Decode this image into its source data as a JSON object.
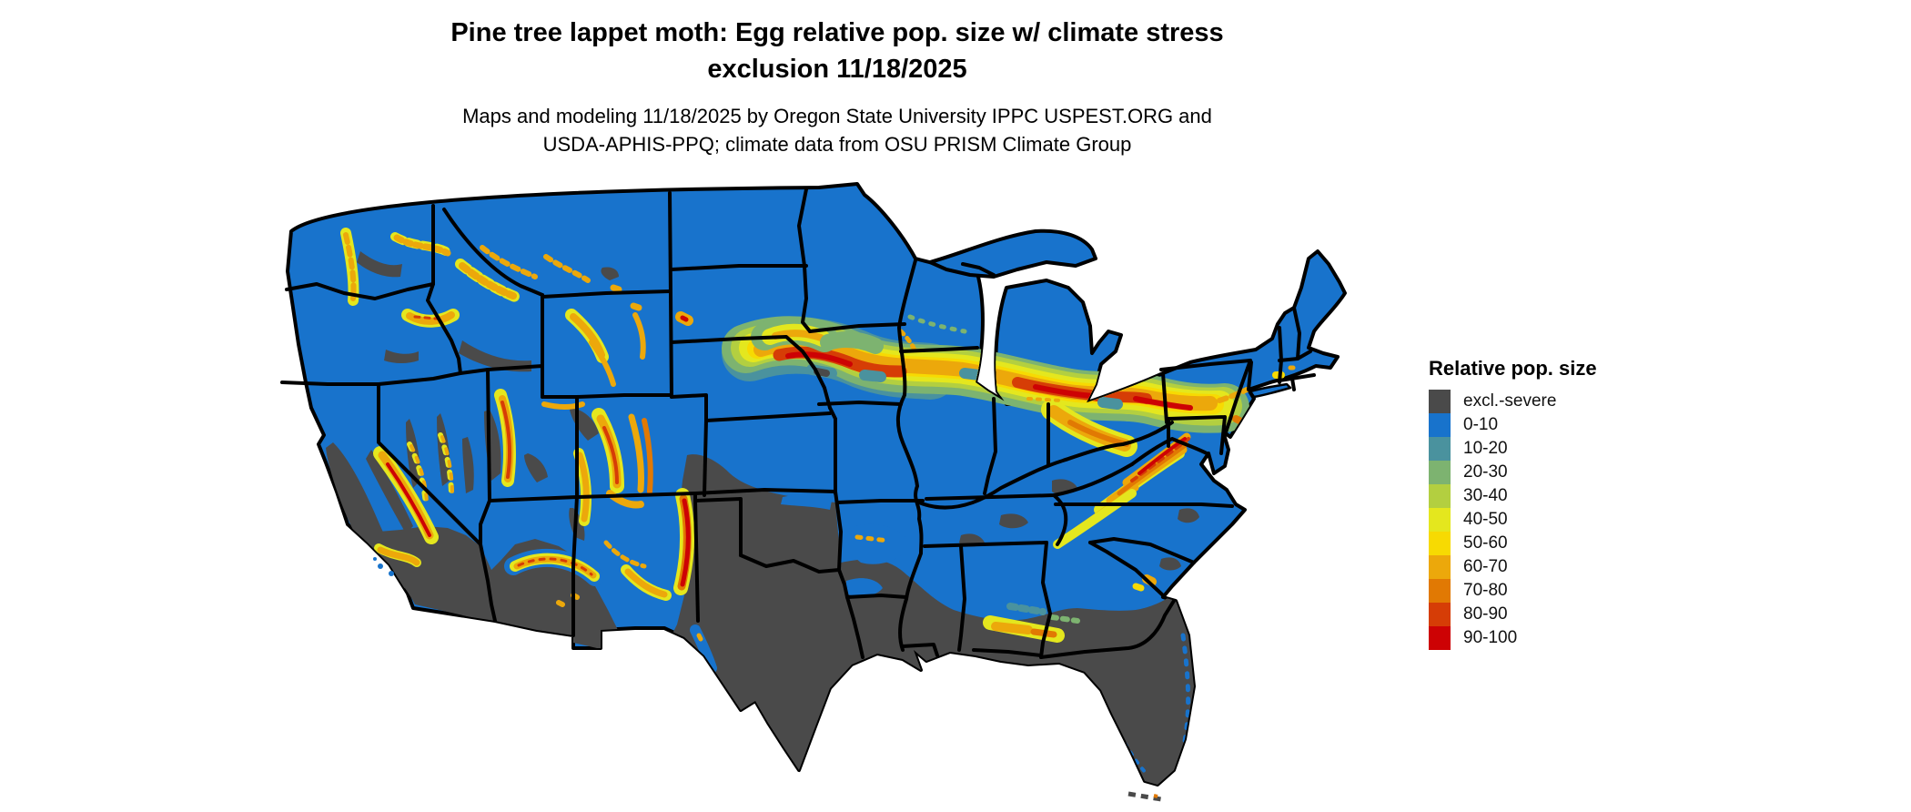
{
  "title": {
    "line1": "Pine tree lappet moth: Egg relative pop. size w/ climate stress",
    "line2": "exclusion 11/18/2025"
  },
  "subtitle": {
    "line1": "Maps and modeling 11/18/2025 by Oregon State University IPPC USPEST.ORG and",
    "line2": "USDA-APHIS-PPQ; climate data from OSU PRISM Climate Group"
  },
  "legend": {
    "title": "Relative pop. size",
    "items": [
      {
        "label": "excl.-severe",
        "color": "#4a4a4a"
      },
      {
        "label": "0-10",
        "color": "#1873cc"
      },
      {
        "label": "10-20",
        "color": "#4a929e"
      },
      {
        "label": "20-30",
        "color": "#7db370"
      },
      {
        "label": "30-40",
        "color": "#b3cf40"
      },
      {
        "label": "40-50",
        "color": "#e4e71e"
      },
      {
        "label": "50-60",
        "color": "#f7da02"
      },
      {
        "label": "60-70",
        "color": "#eca80b"
      },
      {
        "label": "70-80",
        "color": "#e17903"
      },
      {
        "label": "80-90",
        "color": "#d63d06"
      },
      {
        "label": "90-100",
        "color": "#cd0204"
      }
    ]
  },
  "map": {
    "type": "choropleth raster map",
    "region": "Contiguous United States with state boundaries",
    "background_color": "#ffffff",
    "state_border_color": "#000000"
  }
}
